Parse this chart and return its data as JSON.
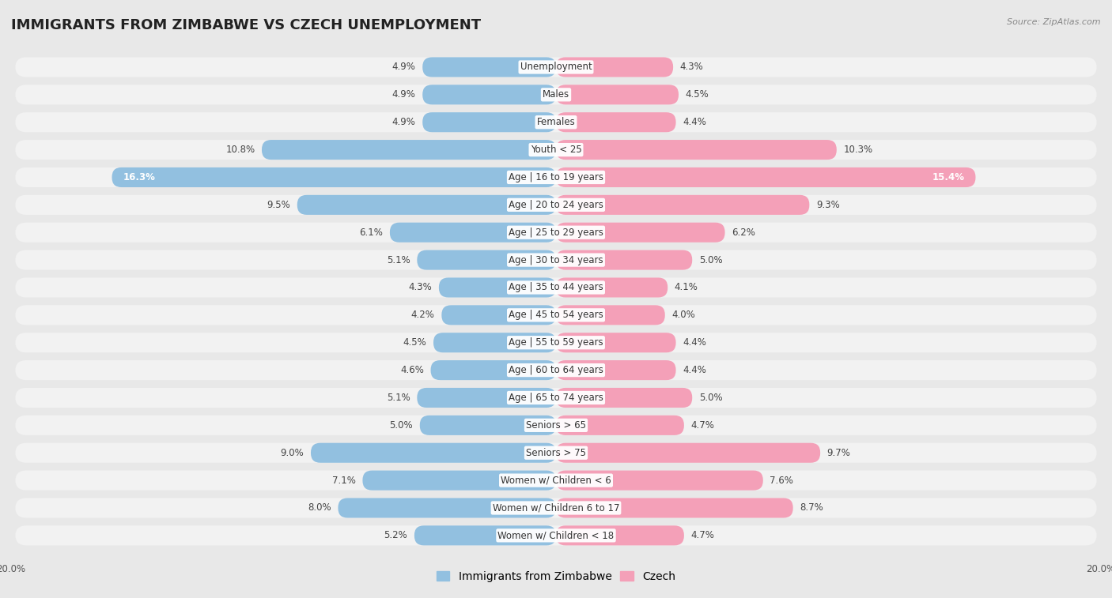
{
  "title": "IMMIGRANTS FROM ZIMBABWE VS CZECH UNEMPLOYMENT",
  "source": "Source: ZipAtlas.com",
  "categories": [
    "Unemployment",
    "Males",
    "Females",
    "Youth < 25",
    "Age | 16 to 19 years",
    "Age | 20 to 24 years",
    "Age | 25 to 29 years",
    "Age | 30 to 34 years",
    "Age | 35 to 44 years",
    "Age | 45 to 54 years",
    "Age | 55 to 59 years",
    "Age | 60 to 64 years",
    "Age | 65 to 74 years",
    "Seniors > 65",
    "Seniors > 75",
    "Women w/ Children < 6",
    "Women w/ Children 6 to 17",
    "Women w/ Children < 18"
  ],
  "zimbabwe_values": [
    4.9,
    4.9,
    4.9,
    10.8,
    16.3,
    9.5,
    6.1,
    5.1,
    4.3,
    4.2,
    4.5,
    4.6,
    5.1,
    5.0,
    9.0,
    7.1,
    8.0,
    5.2
  ],
  "czech_values": [
    4.3,
    4.5,
    4.4,
    10.3,
    15.4,
    9.3,
    6.2,
    5.0,
    4.1,
    4.0,
    4.4,
    4.4,
    5.0,
    4.7,
    9.7,
    7.6,
    8.7,
    4.7
  ],
  "zimbabwe_color": "#92c0e0",
  "czech_color": "#f4a0b8",
  "background_color": "#e8e8e8",
  "row_background": "#f2f2f2",
  "axis_limit": 20.0,
  "bar_height": 0.72,
  "title_fontsize": 13,
  "label_fontsize": 8.5,
  "value_fontsize": 8.5,
  "legend_fontsize": 10
}
